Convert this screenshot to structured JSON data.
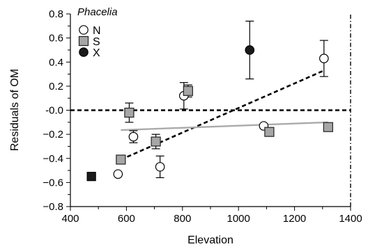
{
  "chart_data": {
    "type": "scatter",
    "xlabel": "Elevation",
    "ylabel": "Residuals of OM",
    "xlim": [
      400,
      1400
    ],
    "ylim": [
      -0.8,
      0.8
    ],
    "xticks": [
      400,
      600,
      800,
      1000,
      1200,
      1400
    ],
    "yticks": [
      -0.8,
      -0.6,
      -0.4,
      -0.2,
      0.0,
      0.2,
      0.4,
      0.6,
      0.8
    ],
    "ytick_labels": [
      "−0.8",
      "−0.6",
      "−0.4",
      "−0.2",
      "-0.0",
      "0.2",
      "0.4",
      "0.6",
      "0.8"
    ],
    "xtick_labels": [
      "400",
      "600",
      "800",
      "1000",
      "1200",
      "1400"
    ],
    "legend": {
      "title": "Phacelia",
      "placement": "top-left",
      "entries": [
        {
          "label": "N",
          "marker": "circle-open"
        },
        {
          "label": "S",
          "marker": "square-gray"
        },
        {
          "label": "X",
          "marker": "circle-filled"
        }
      ]
    },
    "series": [
      {
        "name": "N",
        "marker": "circle-open",
        "points": [
          {
            "x": 570,
            "y": -0.53
          },
          {
            "x": 625,
            "y": -0.22,
            "err": 0.05
          },
          {
            "x": 720,
            "y": -0.47,
            "err": 0.09
          },
          {
            "x": 805,
            "y": 0.12,
            "err": 0.11
          },
          {
            "x": 1090,
            "y": -0.13
          },
          {
            "x": 1305,
            "y": 0.43,
            "err": 0.15
          }
        ]
      },
      {
        "name": "S",
        "marker": "square-gray",
        "points": [
          {
            "x": 580,
            "y": -0.41
          },
          {
            "x": 610,
            "y": -0.02,
            "err": 0.08
          },
          {
            "x": 705,
            "y": -0.26,
            "err": 0.06
          },
          {
            "x": 820,
            "y": 0.16,
            "err": 0.05
          },
          {
            "x": 1110,
            "y": -0.18
          },
          {
            "x": 1320,
            "y": -0.14
          }
        ]
      },
      {
        "name": "X",
        "marker": "circle-filled",
        "points": [
          {
            "x": 1040,
            "y": 0.5,
            "err": 0.24
          },
          {
            "x": 475,
            "y": -0.55,
            "marker": "square-filled"
          }
        ]
      }
    ],
    "lines": [
      {
        "style": "dashed",
        "color": "#000000",
        "x": [
          400,
          1400
        ],
        "y": [
          0.0,
          0.0
        ]
      },
      {
        "style": "dashed",
        "color": "#000000",
        "x": [
          580,
          1305
        ],
        "y": [
          -0.41,
          0.33
        ]
      },
      {
        "style": "solid",
        "color": "#aaaaaa",
        "x": [
          580,
          1320
        ],
        "y": [
          -0.165,
          -0.1
        ]
      },
      {
        "style": "dash-dot",
        "color": "#000000",
        "x": [
          1400,
          1400
        ],
        "y": [
          -0.8,
          0.8
        ]
      }
    ],
    "colors": {
      "gray_marker": "#a6a6a6",
      "gray_line": "#b0b0b0",
      "black": "#000000"
    }
  }
}
